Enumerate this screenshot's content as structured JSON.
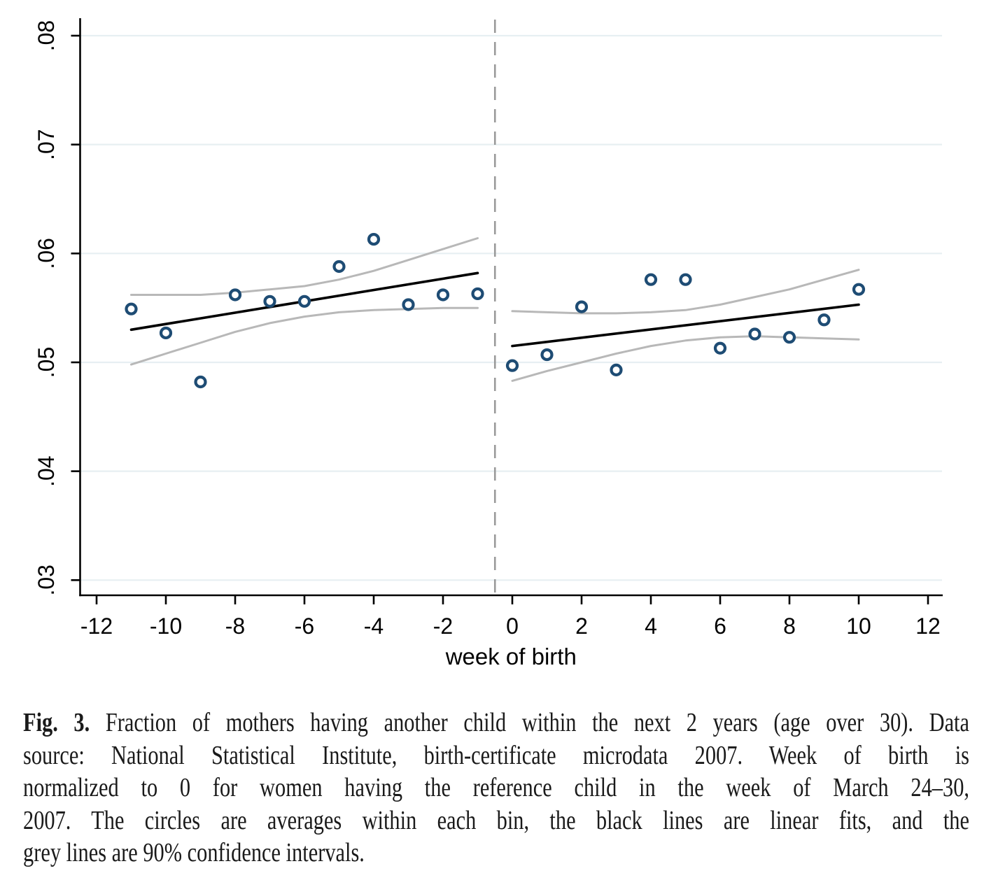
{
  "chart_data": {
    "type": "scatter",
    "title": "",
    "xlabel": "week of birth",
    "ylabel": "",
    "xlim": [
      -12.45,
      12.45
    ],
    "ylim": [
      0.0286,
      0.0816
    ],
    "x_ticks": [
      -12,
      -10,
      -8,
      -6,
      -4,
      -2,
      0,
      2,
      4,
      6,
      8,
      10,
      12
    ],
    "x_tick_labels": [
      "-12",
      "-10",
      "-8",
      "-6",
      "-4",
      "-2",
      "0",
      "2",
      "4",
      "6",
      "8",
      "10",
      "12"
    ],
    "y_ticks": [
      0.03,
      0.04,
      0.05,
      0.06,
      0.07,
      0.08
    ],
    "y_tick_labels": [
      ".03",
      ".04",
      ".05",
      ".06",
      ".07",
      ".08"
    ],
    "grid": "horizontal",
    "legend": "none",
    "cutoff_line_x": -0.5,
    "series": [
      {
        "name": "bin-averages-left",
        "kind": "scatter",
        "points": [
          [
            -11,
            0.0549
          ],
          [
            -10,
            0.0527
          ],
          [
            -9,
            0.0482
          ],
          [
            -8,
            0.0562
          ],
          [
            -7,
            0.0556
          ],
          [
            -6,
            0.0556
          ],
          [
            -5,
            0.0588
          ],
          [
            -4,
            0.0613
          ],
          [
            -3,
            0.0553
          ],
          [
            -2,
            0.0562
          ],
          [
            -1,
            0.0563
          ]
        ]
      },
      {
        "name": "bin-averages-right",
        "kind": "scatter",
        "points": [
          [
            0,
            0.0497
          ],
          [
            1,
            0.0507
          ],
          [
            2,
            0.0551
          ],
          [
            3,
            0.0493
          ],
          [
            4,
            0.0576
          ],
          [
            5,
            0.0576
          ],
          [
            6,
            0.0513
          ],
          [
            7,
            0.0526
          ],
          [
            8,
            0.0523
          ],
          [
            9,
            0.0539
          ],
          [
            10,
            0.0567
          ]
        ]
      },
      {
        "name": "linear-fit-left",
        "kind": "fit-line",
        "points": [
          [
            -11,
            0.053
          ],
          [
            -1,
            0.0582
          ]
        ]
      },
      {
        "name": "linear-fit-right",
        "kind": "fit-line",
        "points": [
          [
            0,
            0.0515
          ],
          [
            10,
            0.0553
          ]
        ]
      },
      {
        "name": "ci90-upper-left",
        "kind": "ci-line",
        "points": [
          [
            -11,
            0.0562
          ],
          [
            -10,
            0.0562
          ],
          [
            -9,
            0.0562
          ],
          [
            -8,
            0.0564
          ],
          [
            -7,
            0.0567
          ],
          [
            -6,
            0.057
          ],
          [
            -5,
            0.0576
          ],
          [
            -4,
            0.0584
          ],
          [
            -3,
            0.0594
          ],
          [
            -2,
            0.0604
          ],
          [
            -1,
            0.0614
          ]
        ]
      },
      {
        "name": "ci90-lower-left",
        "kind": "ci-line",
        "points": [
          [
            -11,
            0.0498
          ],
          [
            -10,
            0.0508
          ],
          [
            -9,
            0.0518
          ],
          [
            -8,
            0.0528
          ],
          [
            -7,
            0.0536
          ],
          [
            -6,
            0.0542
          ],
          [
            -5,
            0.0546
          ],
          [
            -4,
            0.0548
          ],
          [
            -3,
            0.0549
          ],
          [
            -2,
            0.055
          ],
          [
            -1,
            0.055
          ]
        ]
      },
      {
        "name": "ci90-upper-right",
        "kind": "ci-line",
        "points": [
          [
            0,
            0.0547
          ],
          [
            1,
            0.0546
          ],
          [
            2,
            0.0545
          ],
          [
            3,
            0.0545
          ],
          [
            4,
            0.0546
          ],
          [
            5,
            0.0548
          ],
          [
            6,
            0.0553
          ],
          [
            7,
            0.056
          ],
          [
            8,
            0.0567
          ],
          [
            9,
            0.0576
          ],
          [
            10,
            0.0585
          ]
        ]
      },
      {
        "name": "ci90-lower-right",
        "kind": "ci-line",
        "points": [
          [
            0,
            0.0483
          ],
          [
            1,
            0.0492
          ],
          [
            2,
            0.05
          ],
          [
            3,
            0.0508
          ],
          [
            4,
            0.0515
          ],
          [
            5,
            0.052
          ],
          [
            6,
            0.0523
          ],
          [
            7,
            0.0524
          ],
          [
            8,
            0.0523
          ],
          [
            9,
            0.0522
          ],
          [
            10,
            0.0521
          ]
        ]
      }
    ],
    "colors": {
      "marker": "#1e4c74",
      "fit_line": "#000000",
      "ci_line": "#b8b8b8",
      "gridline": "#e7eff2",
      "cutoff_line": "#9a9a9a",
      "axis": "#000000"
    }
  },
  "caption": {
    "label": "Fig. 3.",
    "lines": [
      "Fraction of mothers having another child within the next 2 years (age over 30). Data",
      "source: National Statistical Institute, birth-certificate microdata 2007. Week of birth is",
      "normalized to 0 for women having the reference child in the week of March 24–30,",
      "2007. The circles are averages within each bin, the black lines are linear fits, and the",
      "grey lines are 90% confidence intervals."
    ]
  }
}
